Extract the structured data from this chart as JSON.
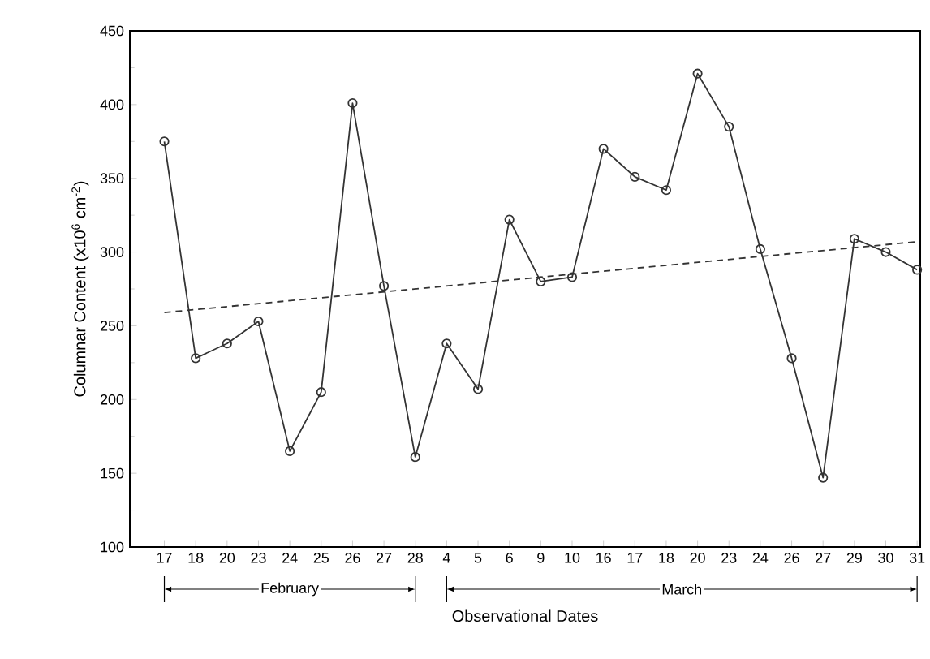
{
  "chart_data": {
    "type": "line",
    "xlabel": "Observational Dates",
    "ylabel": "Columnar Content (x10$^{6}$ cm$^{-2}$)",
    "categories": [
      "17",
      "18",
      "20",
      "23",
      "24",
      "25",
      "26",
      "27",
      "28",
      "4",
      "5",
      "6",
      "9",
      "10",
      "16",
      "17",
      "18",
      "20",
      "23",
      "24",
      "26",
      "27",
      "29",
      "30",
      "31"
    ],
    "series": [
      {
        "color": "#333333",
        "marker": "circle",
        "line_style": "solid",
        "values": [
          375,
          228,
          238,
          253,
          165,
          205,
          401,
          277,
          161,
          238,
          207,
          322,
          280,
          283,
          370,
          351,
          342,
          421,
          385,
          302,
          228,
          147,
          309,
          300,
          288
        ]
      },
      {
        "type": "line",
        "color": "#333333",
        "marker": "none",
        "line_style": "dashed",
        "values": [
          259,
          null,
          null,
          null,
          null,
          null,
          null,
          null,
          null,
          null,
          null,
          null,
          null,
          null,
          null,
          null,
          null,
          null,
          null,
          null,
          null,
          null,
          null,
          null,
          307
        ]
      }
    ],
    "ylim": [
      100,
      450
    ],
    "yticks": [
      100,
      150,
      200,
      250,
      300,
      350,
      400,
      450
    ],
    "annotations": [
      "February",
      "March"
    ]
  }
}
